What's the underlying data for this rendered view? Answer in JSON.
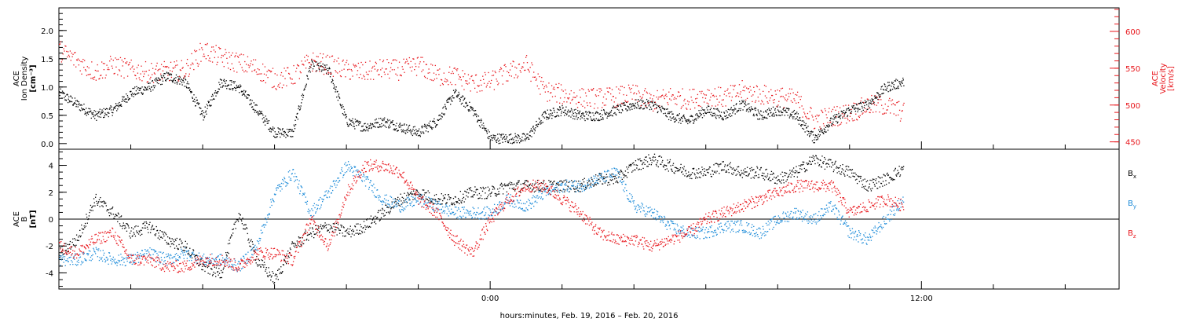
{
  "chart_data": [
    {
      "type": "scatter",
      "panel": "top",
      "ylabel_left": [
        "ACE",
        "Ion Density",
        "[cm⁻³]"
      ],
      "ylabel_right": [
        "ACE",
        "Velocity",
        "[km/s]"
      ],
      "left_ticks": [
        "0.0",
        "0.5",
        "1.0",
        "1.5",
        "2.0"
      ],
      "right_ticks": [
        "450",
        "500",
        "550",
        "600"
      ],
      "ylim_left": [
        -0.1,
        2.4
      ],
      "ylim_right": [
        440,
        632
      ],
      "colors": {
        "density": "#000000",
        "velocity": "#e8151b"
      },
      "density": {
        "name": "Ion Density",
        "x": [
          -12,
          -11.5,
          -11,
          -10.5,
          -10,
          -9.5,
          -9,
          -8.5,
          -8,
          -7.5,
          -7,
          -6.5,
          -6,
          -5.5,
          -5,
          -4.5,
          -4,
          -3.5,
          -3,
          -2.5,
          -2,
          -1.5,
          -1,
          -0.5,
          0,
          0.5,
          1,
          1.5,
          2,
          2.5,
          3,
          3.5,
          4,
          4.5,
          5,
          5.5,
          6,
          6.5,
          7,
          7.5,
          8,
          8.5,
          9,
          9.5,
          10,
          10.5,
          11,
          11.5
        ],
        "y": [
          0.9,
          0.7,
          0.5,
          0.6,
          0.9,
          1.0,
          1.2,
          1.1,
          0.5,
          1.1,
          1.0,
          0.6,
          0.2,
          0.2,
          1.4,
          1.3,
          0.4,
          0.3,
          0.4,
          0.3,
          0.2,
          0.4,
          0.9,
          0.6,
          0.1,
          0.1,
          0.1,
          0.5,
          0.6,
          0.5,
          0.5,
          0.6,
          0.7,
          0.7,
          0.5,
          0.4,
          0.6,
          0.5,
          0.7,
          0.5,
          0.6,
          0.5,
          0.1,
          0.4,
          0.6,
          0.7,
          1.0,
          1.1
        ]
      },
      "velocity": {
        "name": "Velocity",
        "x": [
          -12,
          -11.5,
          -11,
          -10.5,
          -10,
          -9.5,
          -9,
          -8.5,
          -8,
          -7.5,
          -7,
          -6.5,
          -6,
          -5.5,
          -5,
          -4.5,
          -4,
          -3.5,
          -3,
          -2.5,
          -2,
          -1.5,
          -1,
          -0.5,
          0,
          0.5,
          1,
          1.5,
          2,
          2.5,
          3,
          3.5,
          4,
          4.5,
          5,
          5.5,
          6,
          6.5,
          7,
          7.5,
          8,
          8.5,
          9,
          9.5,
          10,
          10.5,
          11,
          11.5
        ],
        "y": [
          575,
          560,
          545,
          555,
          548,
          545,
          546,
          548,
          575,
          565,
          558,
          550,
          535,
          540,
          560,
          555,
          548,
          545,
          550,
          548,
          555,
          540,
          540,
          530,
          532,
          545,
          555,
          520,
          515,
          510,
          510,
          512,
          515,
          505,
          512,
          508,
          515,
          510,
          520,
          515,
          512,
          508,
          480,
          485,
          490,
          500,
          500,
          490
        ]
      }
    },
    {
      "type": "scatter",
      "panel": "bottom",
      "ylabel": [
        "ACE",
        "B",
        "[nT]"
      ],
      "ticks": [
        "-4",
        "-2",
        "0",
        "2",
        "4"
      ],
      "ylim": [
        -5.2,
        5.2
      ],
      "x_ticks": [
        "0:00",
        "12:00"
      ],
      "xlim": [
        -12,
        17.5
      ],
      "xlabel": "hours:minutes, Feb. 19, 2016 – Feb. 20, 2016",
      "legend": [
        "B",
        "B",
        "B"
      ],
      "legend_sub": [
        "x",
        "y",
        "z"
      ],
      "colors": {
        "bx": "#000000",
        "by": "#1a8ad8",
        "bz": "#e8151b"
      },
      "series": [
        {
          "name": "Bx",
          "x": [
            -12,
            -11.5,
            -11,
            -10.5,
            -10,
            -9.5,
            -9,
            -8.5,
            -8,
            -7.5,
            -7,
            -6.5,
            -6,
            -5.5,
            -5,
            -4.5,
            -4,
            -3.5,
            -3,
            -2.5,
            -2,
            -1.5,
            -1,
            -0.5,
            0,
            0.5,
            1,
            1.5,
            2,
            2.5,
            3,
            3.5,
            4,
            4.5,
            5,
            5.5,
            6,
            6.5,
            7,
            7.5,
            8,
            8.5,
            9,
            9.5,
            10,
            10.5,
            11,
            11.5
          ],
          "values": [
            -2.5,
            -1.5,
            1.5,
            0.5,
            -1.0,
            -0.5,
            -1.5,
            -2.0,
            -3.5,
            -4.0,
            0.5,
            -3.0,
            -4.5,
            -2.0,
            -1.0,
            -0.5,
            -1.0,
            -0.5,
            0.5,
            1.5,
            2.0,
            1.5,
            1.5,
            2.0,
            2.0,
            2.5,
            2.5,
            2.5,
            2.5,
            2.5,
            3.0,
            3.0,
            4.0,
            4.5,
            4.0,
            3.5,
            3.5,
            4.0,
            3.5,
            3.5,
            3.0,
            3.5,
            4.5,
            4.0,
            3.5,
            2.5,
            3.0,
            3.8
          ]
        },
        {
          "name": "By",
          "x": [
            -12,
            -11.5,
            -11,
            -10.5,
            -10,
            -9.5,
            -9,
            -8.5,
            -8,
            -7.5,
            -7,
            -6.5,
            -6,
            -5.5,
            -5,
            -4.5,
            -4,
            -3.5,
            -3,
            -2.5,
            -2,
            -1.5,
            -1,
            -0.5,
            0,
            0.5,
            1,
            1.5,
            2,
            2.5,
            3,
            3.5,
            4,
            4.5,
            5,
            5.5,
            6,
            6.5,
            7,
            7.5,
            8,
            8.5,
            9,
            9.5,
            10,
            10.5,
            11,
            11.5
          ],
          "values": [
            -3.0,
            -3.0,
            -2.5,
            -3.0,
            -3.0,
            -2.5,
            -3.0,
            -2.5,
            -3.0,
            -3.0,
            -3.5,
            -2.0,
            2.0,
            3.5,
            0.5,
            2.0,
            4.0,
            3.0,
            1.5,
            1.0,
            1.5,
            1.0,
            0.5,
            0.5,
            0.5,
            1.5,
            1.0,
            2.0,
            2.5,
            2.5,
            3.0,
            3.5,
            1.0,
            0.5,
            -0.5,
            -1.0,
            -1.0,
            -0.5,
            -0.5,
            -1.0,
            0,
            0.5,
            0,
            1.0,
            -1.0,
            -1.5,
            0,
            1.5
          ]
        },
        {
          "name": "Bz",
          "x": [
            -12,
            -11.5,
            -11,
            -10.5,
            -10,
            -9.5,
            -9,
            -8.5,
            -8,
            -7.5,
            -7,
            -6.5,
            -6,
            -5.5,
            -5,
            -4.5,
            -4,
            -3.5,
            -3,
            -2.5,
            -2,
            -1.5,
            -1,
            -0.5,
            0,
            0.5,
            1,
            1.5,
            2,
            2.5,
            3,
            3.5,
            4,
            4.5,
            5,
            5.5,
            6,
            6.5,
            7,
            7.5,
            8,
            8.5,
            9,
            9.5,
            10,
            10.5,
            11,
            11.5
          ],
          "values": [
            -2.0,
            -2.5,
            -1.5,
            -1.0,
            -3.0,
            -3.0,
            -3.5,
            -3.5,
            -3.0,
            -3.0,
            -3.5,
            -2.5,
            -2.5,
            -3.0,
            0,
            -2.0,
            2.0,
            4.0,
            4.0,
            3.5,
            1.5,
            0.5,
            -1.5,
            -2.5,
            0,
            1.5,
            2.5,
            2.5,
            1.5,
            0.5,
            -1.0,
            -1.5,
            -1.5,
            -2.0,
            -1.5,
            -1.0,
            0,
            0.5,
            1.0,
            1.5,
            2.0,
            2.5,
            2.5,
            2.5,
            0.5,
            1.0,
            1.5,
            1.0
          ]
        }
      ]
    }
  ]
}
